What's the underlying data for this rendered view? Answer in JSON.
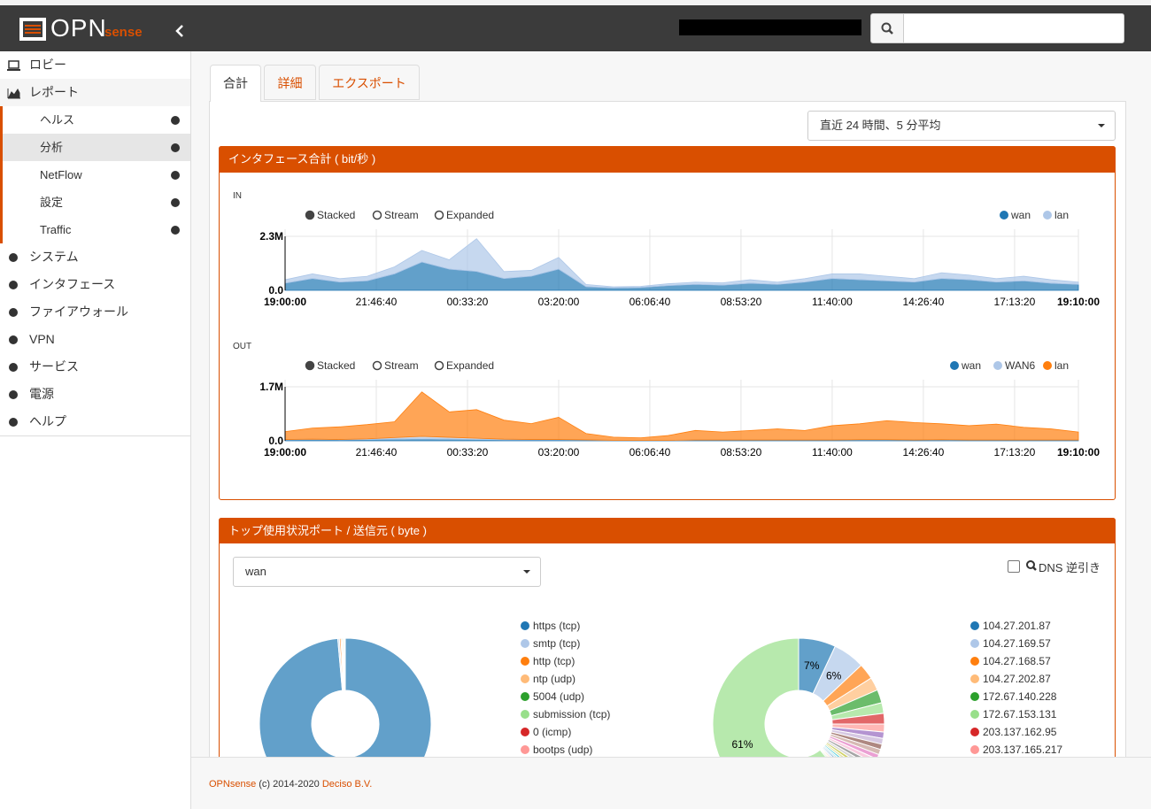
{
  "header": {
    "logo_main": "OPN",
    "logo_sub": "sense"
  },
  "sidebar": {
    "top": [
      "ロビー",
      "レポート"
    ],
    "report_items": [
      "ヘルス",
      "分析",
      "NetFlow",
      "設定",
      "Traffic"
    ],
    "bottom": [
      "システム",
      "インタフェース",
      "ファイアウォール",
      "VPN",
      "サービス",
      "電源",
      "ヘルプ"
    ]
  },
  "tabs": [
    "合計",
    "詳細",
    "エクスポート"
  ],
  "period_select": "直近 24 時間、5 分平均",
  "panels": [
    {
      "title": "インタフェース合計 ( bit/秒 )"
    },
    {
      "title": "トップ使用状況ポート / 送信元 ( byte )",
      "select": "wan",
      "dns_label": "DNS 逆引き"
    }
  ],
  "footer": {
    "brand": "OPNsense",
    "copyright": "(c) 2014-2020",
    "company": "Deciso B.V."
  },
  "chart_data": [
    {
      "type": "area",
      "label": "IN",
      "stacked": true,
      "controls": [
        "Stacked",
        "Stream",
        "Expanded"
      ],
      "x": [
        0,
        3000,
        6000,
        9000,
        12000,
        15000,
        18000,
        21000,
        24000,
        27000,
        30000,
        33000,
        36000,
        39000,
        42000,
        45000,
        48000,
        51000,
        54000,
        57000,
        60000,
        63000,
        66000,
        69000,
        72000,
        75000,
        78000,
        81000,
        84000,
        87000
      ],
      "xlim": [
        0,
        87000
      ],
      "xticks": [
        {
          "value": 0,
          "label": "19:00:00"
        },
        {
          "value": 10000,
          "label": "21:46:40"
        },
        {
          "value": 20000,
          "label": "00:33:20"
        },
        {
          "value": 30000,
          "label": "03:20:00"
        },
        {
          "value": 40000,
          "label": "06:06:40"
        },
        {
          "value": 50000,
          "label": "08:53:20"
        },
        {
          "value": 60000,
          "label": "11:40:00"
        },
        {
          "value": 70000,
          "label": "14:26:40"
        },
        {
          "value": 80000,
          "label": "17:13:20"
        },
        {
          "value": 87000,
          "label": "19:10:00"
        }
      ],
      "ylim": [
        0,
        2300000
      ],
      "yticks": [
        {
          "value": 0,
          "label": "0.0"
        },
        {
          "value": 2300000,
          "label": "2.3M"
        }
      ],
      "series": [
        {
          "name": "wan",
          "color": "#1f77b4",
          "values": [
            300000,
            500000,
            350000,
            400000,
            700000,
            1200000,
            900000,
            800000,
            500000,
            600000,
            900000,
            150000,
            100000,
            120000,
            200000,
            250000,
            220000,
            300000,
            250000,
            350000,
            500000,
            450000,
            400000,
            350000,
            500000,
            450000,
            350000,
            400000,
            300000,
            250000
          ]
        },
        {
          "name": "lan",
          "color": "#aec7e8",
          "values": [
            150000,
            200000,
            150000,
            200000,
            300000,
            500000,
            400000,
            1400000,
            300000,
            250000,
            500000,
            100000,
            50000,
            50000,
            80000,
            100000,
            100000,
            150000,
            100000,
            150000,
            200000,
            250000,
            200000,
            150000,
            250000,
            200000,
            150000,
            200000,
            150000,
            100000
          ]
        }
      ]
    },
    {
      "type": "area",
      "label": "OUT",
      "stacked": true,
      "controls": [
        "Stacked",
        "Stream",
        "Expanded"
      ],
      "x": [
        0,
        3000,
        6000,
        9000,
        12000,
        15000,
        18000,
        21000,
        24000,
        27000,
        30000,
        33000,
        36000,
        39000,
        42000,
        45000,
        48000,
        51000,
        54000,
        57000,
        60000,
        63000,
        66000,
        69000,
        72000,
        75000,
        78000,
        81000,
        84000,
        87000
      ],
      "xlim": [
        0,
        87000
      ],
      "xticks": [
        {
          "value": 0,
          "label": "19:00:00"
        },
        {
          "value": 10000,
          "label": "21:46:40"
        },
        {
          "value": 20000,
          "label": "00:33:20"
        },
        {
          "value": 30000,
          "label": "03:20:00"
        },
        {
          "value": 40000,
          "label": "06:06:40"
        },
        {
          "value": 50000,
          "label": "08:53:20"
        },
        {
          "value": 60000,
          "label": "11:40:00"
        },
        {
          "value": 70000,
          "label": "14:26:40"
        },
        {
          "value": 80000,
          "label": "17:13:20"
        },
        {
          "value": 87000,
          "label": "19:10:00"
        }
      ],
      "ylim": [
        0,
        1700000
      ],
      "yticks": [
        {
          "value": 0,
          "label": "0.0"
        },
        {
          "value": 1700000,
          "label": "1.7M"
        }
      ],
      "series": [
        {
          "name": "wan",
          "color": "#1f77b4",
          "values": [
            30000,
            40000,
            30000,
            40000,
            50000,
            60000,
            50000,
            40000,
            30000,
            30000,
            30000,
            20000,
            10000,
            10000,
            10000,
            20000,
            20000,
            20000,
            20000,
            20000,
            20000,
            30000,
            30000,
            20000,
            30000,
            20000,
            20000,
            20000,
            20000,
            20000
          ]
        },
        {
          "name": "WAN6",
          "color": "#aec7e8",
          "values": [
            10000,
            10000,
            10000,
            20000,
            50000,
            80000,
            60000,
            40000,
            20000,
            10000,
            10000,
            10000,
            5000,
            5000,
            5000,
            5000,
            5000,
            5000,
            5000,
            5000,
            5000,
            5000,
            5000,
            5000,
            5000,
            5000,
            5000,
            5000,
            5000,
            5000
          ]
        },
        {
          "name": "lan",
          "color": "#ff7f0e",
          "values": [
            250000,
            350000,
            400000,
            450000,
            500000,
            1400000,
            800000,
            900000,
            600000,
            500000,
            700000,
            200000,
            100000,
            80000,
            150000,
            300000,
            250000,
            300000,
            350000,
            300000,
            450000,
            500000,
            600000,
            550000,
            500000,
            450000,
            500000,
            400000,
            350000,
            250000
          ]
        }
      ]
    },
    {
      "type": "pie",
      "donut": true,
      "labels": [
        "https (tcp)",
        "smtp (tcp)",
        "http (tcp)",
        "ntp (udp)",
        "5004 (udp)",
        "submission (tcp)",
        "0 (icmp)",
        "bootps (udp)"
      ],
      "values": [
        98.6,
        0.3,
        0.3,
        0.2,
        0.2,
        0.2,
        0.1,
        0.1
      ],
      "palette": [
        "#1f77b4",
        "#aec7e8",
        "#ff7f0e",
        "#ffbb78",
        "#2ca02c",
        "#98df8a",
        "#d62728",
        "#ff9896",
        "#9467bd",
        "#c5b0d5",
        "#8c564b",
        "#c49c94",
        "#e377c2",
        "#f7b6d2",
        "#7f7f7f",
        "#c7c7c7",
        "#bcbd22",
        "#dbdb8d",
        "#17becf",
        "#9edae5"
      ]
    },
    {
      "type": "pie",
      "donut": true,
      "labels": [
        "104.27.201.87",
        "104.27.169.57",
        "104.27.168.57",
        "104.27.202.87",
        "172.67.140.228",
        "172.67.153.131",
        "203.137.162.95",
        "203.137.165.217",
        null,
        null,
        null,
        null,
        null,
        null,
        null,
        null,
        null,
        null,
        null,
        null,
        null,
        null,
        null,
        null,
        null,
        null
      ],
      "values": [
        7,
        6,
        3,
        2.5,
        2.5,
        2,
        2,
        1.5,
        1.2,
        1.1,
        1,
        1,
        0.9,
        0.9,
        0.8,
        0.8,
        0.7,
        0.7,
        0.6,
        0.6,
        0.5,
        0.5,
        0.4,
        0.4,
        0.4,
        61
      ],
      "value_labels": [
        "7%",
        "6%",
        null,
        null,
        null,
        null,
        null,
        null,
        null,
        null,
        null,
        null,
        null,
        null,
        null,
        null,
        null,
        null,
        null,
        null,
        null,
        null,
        null,
        null,
        null,
        "61%"
      ],
      "palette": [
        "#1f77b4",
        "#aec7e8",
        "#ff7f0e",
        "#ffbb78",
        "#2ca02c",
        "#98df8a",
        "#d62728",
        "#ff9896",
        "#9467bd",
        "#c5b0d5",
        "#8c564b",
        "#c49c94",
        "#e377c2",
        "#f7b6d2",
        "#7f7f7f",
        "#c7c7c7",
        "#bcbd22",
        "#dbdb8d",
        "#17becf",
        "#9edae5"
      ]
    }
  ]
}
